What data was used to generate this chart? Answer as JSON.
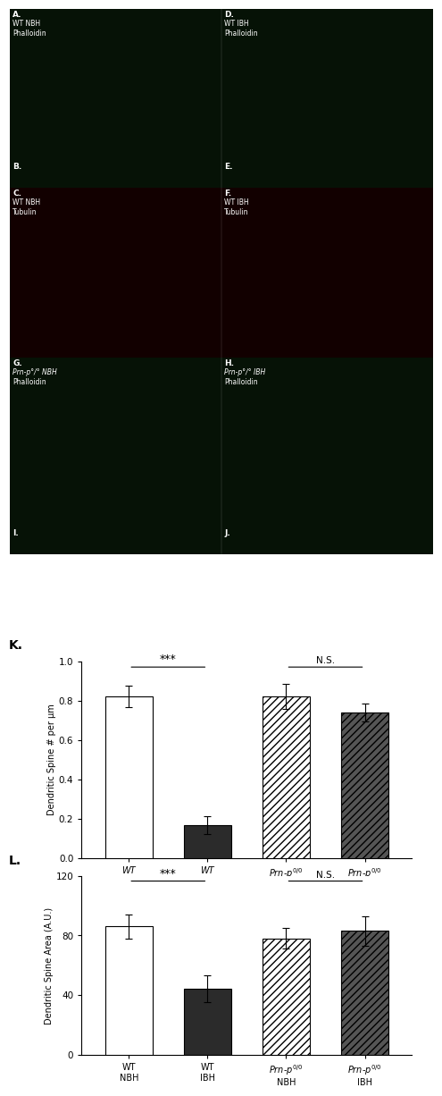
{
  "panel_A_text": [
    "WT NBH",
    "Phalloidin"
  ],
  "panel_C_text": [
    "WT NBH",
    "Tubulin"
  ],
  "panel_D_text": [
    "WT IBH",
    "Phalloidin"
  ],
  "panel_F_text": [
    "WT IBH",
    "Tubulin"
  ],
  "panel_G_text": [
    "Prn-p°/° NBH",
    "Phalloidin"
  ],
  "panel_H_text": [
    "Prn-p°/° IBH",
    "Phalloidin"
  ],
  "chart_K_label": "K.",
  "chart_L_label": "L.",
  "chart_K_ylabel": "Dendritic Spine # per μm",
  "chart_L_ylabel": "Dendritic Spine Area (A.U.)",
  "chart_K_ylim": [
    0.0,
    1.0
  ],
  "chart_L_ylim": [
    0,
    120
  ],
  "chart_K_yticks": [
    0.0,
    0.2,
    0.4,
    0.6,
    0.8,
    1.0
  ],
  "chart_L_yticks": [
    0,
    40,
    80,
    120
  ],
  "categories": [
    "WT\nNBH",
    "WT\nIBH",
    "Prn-p$^{0/0}$\nNBH",
    "Prn-p$^{0/0}$\nIBH"
  ],
  "chart_K_values": [
    0.82,
    0.165,
    0.82,
    0.74
  ],
  "chart_K_errors": [
    0.055,
    0.045,
    0.065,
    0.045
  ],
  "chart_L_values": [
    86,
    44,
    78,
    83
  ],
  "chart_L_errors": [
    8,
    9,
    7,
    10
  ],
  "bar_colors": [
    "white",
    "#2b2b2b",
    "white",
    "#555555"
  ],
  "bar_edgecolor": "black",
  "background_color": "white",
  "sig_star": "***",
  "sig_ns": "N.S.",
  "hatches": [
    "",
    "",
    "////",
    "////"
  ],
  "green_panel_bg": "#050f05",
  "red_panel_bg": "#100000",
  "white_bg": "#ffffff"
}
